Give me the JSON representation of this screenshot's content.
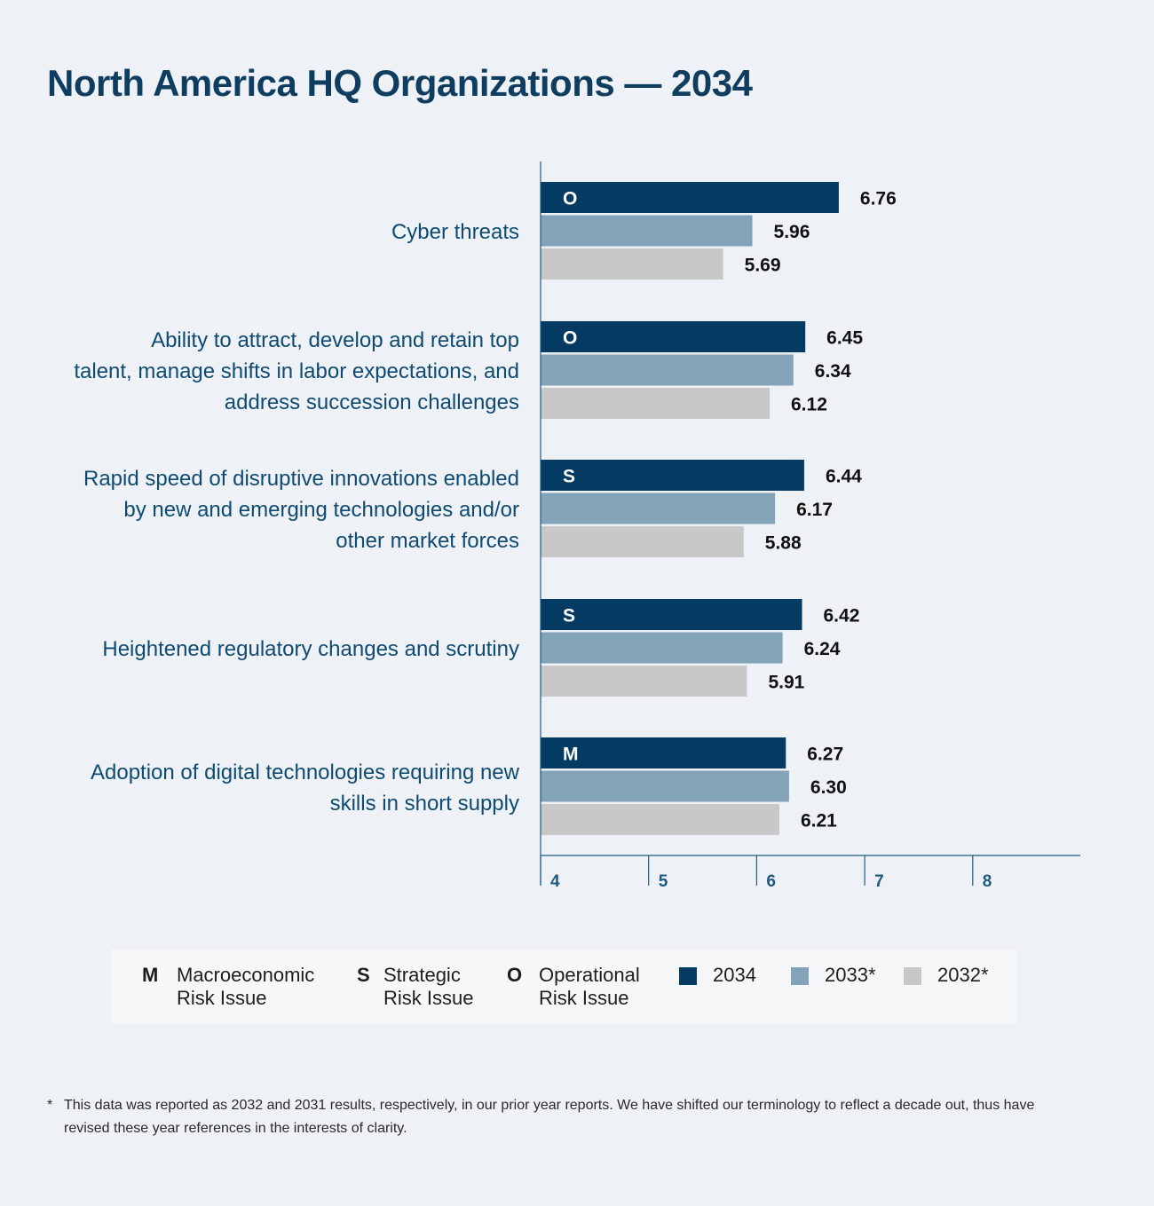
{
  "title": "North America HQ Organizations — 2034",
  "colors": {
    "y2034": "#053b63",
    "y2033": "#82a3b8",
    "y2032": "#c8c8c8",
    "axis": "#1f5a80",
    "label": "#0f4a72"
  },
  "chart_data": {
    "type": "bar",
    "orientation": "horizontal",
    "title": "North America HQ Organizations — 2034",
    "categories": [
      "Cyber threats",
      "Ability to attract, develop and retain top talent, manage shifts in labor expectations, and address succession challenges",
      "Rapid speed of disruptive innovations enabled by new and emerging technologies and/or other market forces",
      "Heightened regulatory changes and scrutiny",
      "Adoption of digital technologies requiring new skills in short supply"
    ],
    "category_lines": [
      [
        "Cyber threats"
      ],
      [
        "Ability to attract, develop and retain top",
        "talent, manage shifts in labor expectations, and",
        "address succession challenges"
      ],
      [
        "Rapid speed of disruptive innovations enabled",
        "by new and emerging technologies and/or",
        "other market forces"
      ],
      [
        "Heightened regulatory changes and scrutiny"
      ],
      [
        "Adoption of digital technologies requiring new",
        "skills in short supply"
      ]
    ],
    "risk_types": [
      "O",
      "O",
      "S",
      "S",
      "M"
    ],
    "series": [
      {
        "name": "2034",
        "values": [
          6.76,
          6.45,
          6.44,
          6.42,
          6.27
        ]
      },
      {
        "name": "2033*",
        "values": [
          5.96,
          6.34,
          6.17,
          6.24,
          6.3
        ]
      },
      {
        "name": "2032*",
        "values": [
          5.69,
          6.12,
          5.88,
          5.91,
          6.21
        ]
      }
    ],
    "value_labels": [
      [
        "6.76",
        "5.96",
        "5.69"
      ],
      [
        "6.45",
        "6.34",
        "6.12"
      ],
      [
        "6.44",
        "6.17",
        "5.88"
      ],
      [
        "6.42",
        "6.24",
        "5.91"
      ],
      [
        "6.27",
        "6.30",
        "6.21"
      ]
    ],
    "xlim": [
      4,
      9
    ],
    "xticks": [
      "4",
      "5",
      "6",
      "7",
      "8"
    ],
    "grid": false,
    "legend_position": "bottom"
  },
  "legend": {
    "risk_types": [
      {
        "code": "M",
        "line1": "Macroeconomic",
        "line2": "Risk Issue"
      },
      {
        "code": "S",
        "line1": "Strategic",
        "line2": "Risk Issue"
      },
      {
        "code": "O",
        "line1": "Operational",
        "line2": "Risk Issue"
      }
    ],
    "years": [
      "2034",
      "2033*",
      "2032*"
    ]
  },
  "footnote": {
    "mark": "*",
    "text": "This data was reported as 2032 and 2031 results, respectively, in our prior year reports. We have shifted our terminology to reflect a decade out, thus have revised these year references in the interests of clarity."
  }
}
